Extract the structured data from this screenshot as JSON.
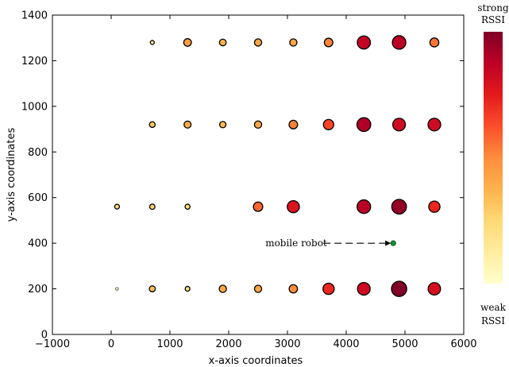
{
  "chart_data": {
    "type": "scatter",
    "xlabel": "x-axis coordinates",
    "ylabel": "y-axis coordinates",
    "xlim": [
      -1000,
      6000
    ],
    "ylim": [
      0,
      1400
    ],
    "xticks": [
      -1000,
      0,
      1000,
      2000,
      3000,
      4000,
      5000,
      6000
    ],
    "yticks": [
      0,
      200,
      400,
      600,
      800,
      1000,
      1200,
      1400
    ],
    "xtick_labels": [
      "−1000",
      "0",
      "1000",
      "2000",
      "3000",
      "4000",
      "5000",
      "6000"
    ],
    "ytick_labels": [
      "0",
      "200",
      "400",
      "600",
      "800",
      "1000",
      "1200",
      "1400"
    ],
    "grid": false,
    "colormap": [
      "#ffffcc",
      "#ffeda0",
      "#fed976",
      "#feb24c",
      "#fd8d3c",
      "#fc4e2a",
      "#e31a1c",
      "#bd0026",
      "#800026"
    ],
    "colorbar": {
      "top_label": [
        "strong",
        "RSSI"
      ],
      "bottom_label": [
        "weak",
        "RSSI"
      ]
    },
    "points": [
      {
        "x": 700,
        "y": 1280,
        "rssi": 0.15
      },
      {
        "x": 1300,
        "y": 1280,
        "rssi": 0.45
      },
      {
        "x": 1900,
        "y": 1280,
        "rssi": 0.38
      },
      {
        "x": 2500,
        "y": 1280,
        "rssi": 0.42
      },
      {
        "x": 3100,
        "y": 1280,
        "rssi": 0.42
      },
      {
        "x": 3700,
        "y": 1280,
        "rssi": 0.52
      },
      {
        "x": 4300,
        "y": 1280,
        "rssi": 0.85
      },
      {
        "x": 4900,
        "y": 1280,
        "rssi": 0.88
      },
      {
        "x": 5500,
        "y": 1280,
        "rssi": 0.55
      },
      {
        "x": 700,
        "y": 920,
        "rssi": 0.3
      },
      {
        "x": 1300,
        "y": 920,
        "rssi": 0.4
      },
      {
        "x": 1900,
        "y": 920,
        "rssi": 0.35
      },
      {
        "x": 2500,
        "y": 920,
        "rssi": 0.42
      },
      {
        "x": 3100,
        "y": 920,
        "rssi": 0.52
      },
      {
        "x": 3700,
        "y": 920,
        "rssi": 0.65
      },
      {
        "x": 4300,
        "y": 920,
        "rssi": 0.9
      },
      {
        "x": 4900,
        "y": 920,
        "rssi": 0.82
      },
      {
        "x": 5500,
        "y": 920,
        "rssi": 0.82
      },
      {
        "x": 100,
        "y": 560,
        "rssi": 0.22
      },
      {
        "x": 700,
        "y": 560,
        "rssi": 0.26
      },
      {
        "x": 1300,
        "y": 560,
        "rssi": 0.24
      },
      {
        "x": 2500,
        "y": 560,
        "rssi": 0.58
      },
      {
        "x": 3100,
        "y": 560,
        "rssi": 0.78
      },
      {
        "x": 4300,
        "y": 560,
        "rssi": 0.88
      },
      {
        "x": 4900,
        "y": 560,
        "rssi": 0.96
      },
      {
        "x": 5500,
        "y": 560,
        "rssi": 0.72
      },
      {
        "x": 100,
        "y": 200,
        "rssi": 0.02
      },
      {
        "x": 700,
        "y": 200,
        "rssi": 0.32
      },
      {
        "x": 1300,
        "y": 200,
        "rssi": 0.22
      },
      {
        "x": 1900,
        "y": 200,
        "rssi": 0.42
      },
      {
        "x": 2500,
        "y": 200,
        "rssi": 0.42
      },
      {
        "x": 3100,
        "y": 200,
        "rssi": 0.5
      },
      {
        "x": 3700,
        "y": 200,
        "rssi": 0.72
      },
      {
        "x": 4300,
        "y": 200,
        "rssi": 0.82
      },
      {
        "x": 4900,
        "y": 200,
        "rssi": 1.0
      },
      {
        "x": 5500,
        "y": 200,
        "rssi": 0.8
      }
    ],
    "annotation": {
      "text": "mobile robot",
      "point": {
        "x": 4800,
        "y": 400
      },
      "marker_color": "#1a8a2e"
    }
  }
}
